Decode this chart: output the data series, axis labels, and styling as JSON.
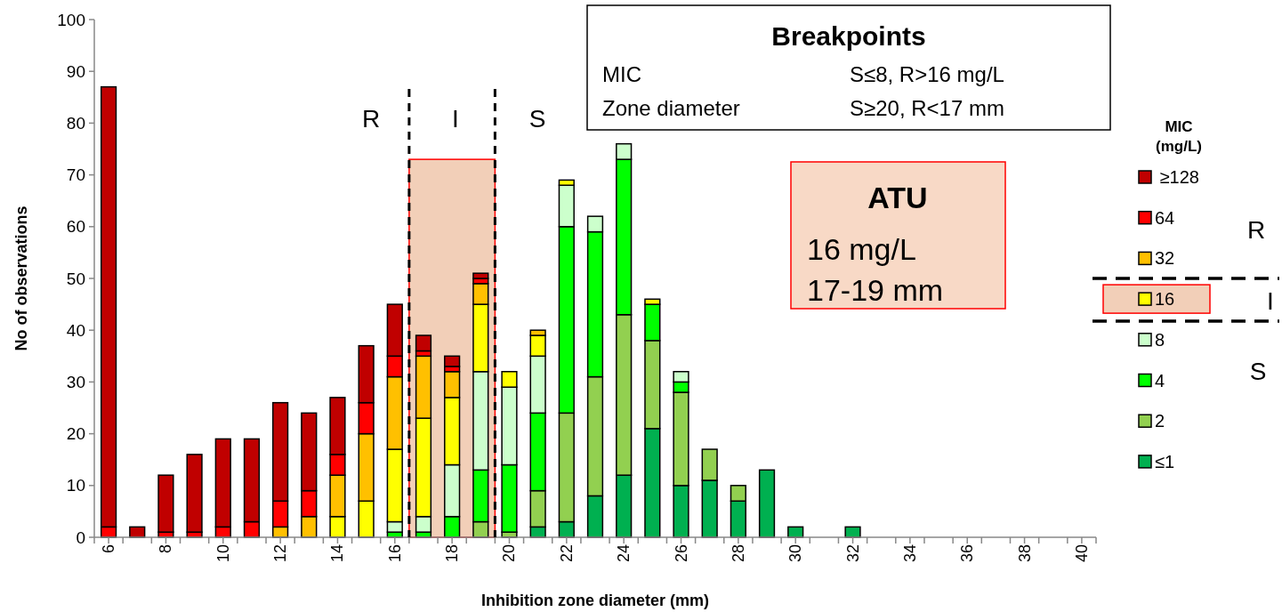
{
  "chart_data": {
    "type": "bar",
    "stacked": true,
    "x": [
      6,
      7,
      8,
      9,
      10,
      11,
      12,
      13,
      14,
      15,
      16,
      17,
      18,
      19,
      20,
      21,
      22,
      23,
      24,
      25,
      26,
      27,
      28,
      29,
      30,
      31,
      32,
      33,
      34,
      35,
      36,
      37,
      38,
      39,
      40
    ],
    "xlim": [
      5.5,
      40.5
    ],
    "xticks": [
      {
        "value": 5.5,
        "label": null
      },
      6,
      {
        "value": 6.5,
        "label": null
      },
      {
        "value": 7.5,
        "label": null
      },
      8,
      {
        "value": 8.5,
        "label": null
      },
      {
        "value": 9.5,
        "label": null
      },
      10,
      {
        "value": 10.5,
        "label": null
      },
      {
        "value": 11.5,
        "label": null
      },
      12,
      {
        "value": 12.5,
        "label": null
      },
      {
        "value": 13.5,
        "label": null
      },
      14,
      {
        "value": 14.5,
        "label": null
      },
      {
        "value": 15.5,
        "label": null
      },
      16,
      {
        "value": 16.5,
        "label": null
      },
      {
        "value": 17.5,
        "label": null
      },
      18,
      {
        "value": 18.5,
        "label": null
      },
      {
        "value": 19.5,
        "label": null
      },
      20,
      {
        "value": 20.5,
        "label": null
      },
      {
        "value": 21.5,
        "label": null
      },
      22,
      {
        "value": 22.5,
        "label": null
      },
      {
        "value": 23.5,
        "label": null
      },
      24,
      {
        "value": 24.5,
        "label": null
      },
      {
        "value": 25.5,
        "label": null
      },
      26,
      {
        "value": 26.5,
        "label": null
      },
      {
        "value": 27.5,
        "label": null
      },
      28,
      {
        "value": 28.5,
        "label": null
      },
      {
        "value": 29.5,
        "label": null
      },
      30,
      {
        "value": 30.5,
        "label": null
      },
      {
        "value": 31.5,
        "label": null
      },
      32,
      {
        "value": 32.5,
        "label": null
      },
      {
        "value": 33.5,
        "label": null
      },
      34,
      {
        "value": 34.5,
        "label": null
      },
      {
        "value": 35.5,
        "label": null
      },
      36,
      {
        "value": 36.5,
        "label": null
      },
      {
        "value": 37.5,
        "label": null
      },
      38,
      {
        "value": 38.5,
        "label": null
      },
      {
        "value": 39.5,
        "label": null
      },
      40,
      {
        "value": 40.5,
        "label": null
      }
    ],
    "ylim": [
      0,
      100
    ],
    "yticks": [
      0,
      10,
      20,
      30,
      40,
      50,
      60,
      70,
      80,
      90,
      100
    ],
    "xlabel": "Inhibition zone diameter (mm)",
    "ylabel": "No of observations",
    "legend": "right",
    "legend_title": "MIC (mg/L)",
    "series": [
      {
        "name": "≤1",
        "color": "#00b050",
        "values": [
          0,
          0,
          0,
          0,
          0,
          0,
          0,
          0,
          0,
          0,
          0,
          0,
          0,
          0,
          0,
          2,
          3,
          8,
          12,
          21,
          10,
          11,
          7,
          13,
          2,
          0,
          2,
          0,
          0,
          0,
          0,
          0,
          0,
          0,
          0
        ]
      },
      {
        "name": "2",
        "color": "#92d050",
        "values": [
          0,
          0,
          0,
          0,
          0,
          0,
          0,
          0,
          0,
          0,
          0,
          0,
          0,
          3,
          1,
          7,
          21,
          23,
          31,
          17,
          18,
          6,
          3,
          0,
          0,
          0,
          0,
          0,
          0,
          0,
          0,
          0,
          0,
          0,
          0
        ]
      },
      {
        "name": "4",
        "color": "#00ff00",
        "values": [
          0,
          0,
          0,
          0,
          0,
          0,
          0,
          0,
          0,
          0,
          1,
          1,
          4,
          10,
          13,
          15,
          36,
          28,
          30,
          7,
          2,
          0,
          0,
          0,
          0,
          0,
          0,
          0,
          0,
          0,
          0,
          0,
          0,
          0,
          0
        ]
      },
      {
        "name": "8",
        "color": "#ccffcc",
        "values": [
          0,
          0,
          0,
          0,
          0,
          0,
          0,
          0,
          0,
          0,
          2,
          3,
          10,
          19,
          15,
          11,
          8,
          3,
          3,
          0,
          2,
          0,
          0,
          0,
          0,
          0,
          0,
          0,
          0,
          0,
          0,
          0,
          0,
          0,
          0
        ]
      },
      {
        "name": "16",
        "color": "#ffff00",
        "values": [
          0,
          0,
          0,
          0,
          0,
          0,
          0,
          0,
          4,
          7,
          14,
          19,
          13,
          13,
          3,
          4,
          1,
          0,
          0,
          1,
          0,
          0,
          0,
          0,
          0,
          0,
          0,
          0,
          0,
          0,
          0,
          0,
          0,
          0,
          0
        ]
      },
      {
        "name": "32",
        "color": "#ffc000",
        "values": [
          0,
          0,
          0,
          0,
          0,
          0,
          2,
          4,
          8,
          13,
          14,
          12,
          5,
          4,
          0,
          1,
          0,
          0,
          0,
          0,
          0,
          0,
          0,
          0,
          0,
          0,
          0,
          0,
          0,
          0,
          0,
          0,
          0,
          0,
          0
        ]
      },
      {
        "name": "64",
        "color": "#ff0000",
        "values": [
          2,
          0,
          1,
          1,
          2,
          3,
          5,
          5,
          4,
          6,
          4,
          1,
          1,
          1,
          0,
          0,
          0,
          0,
          0,
          0,
          0,
          0,
          0,
          0,
          0,
          0,
          0,
          0,
          0,
          0,
          0,
          0,
          0,
          0,
          0
        ]
      },
      {
        "name": " ≥128",
        "color": "#c00000",
        "values": [
          85,
          2,
          11,
          15,
          17,
          16,
          19,
          15,
          11,
          11,
          10,
          3,
          2,
          1,
          0,
          0,
          0,
          0,
          0,
          0,
          0,
          0,
          0,
          0,
          0,
          0,
          0,
          0,
          0,
          0,
          0,
          0,
          0,
          0,
          0
        ]
      }
    ],
    "ref_lines": [
      {
        "axis": "x",
        "value": 16.5,
        "color": "#000000",
        "line_style": "dashed"
      },
      {
        "axis": "x",
        "value": 19.5,
        "color": "#000000",
        "line_style": "dashed"
      }
    ],
    "bands": [
      {
        "axis": "x",
        "from": 16.5,
        "to": 19.5,
        "color": "#f2cfb8"
      }
    ],
    "annotations": [
      "R",
      "I",
      "S",
      "Breakpoints",
      "MIC",
      "S≤8, R>16 mg/L",
      "Zone diameter",
      "S≥20, R<17 mm",
      "ATU",
      "16 mg/L",
      "17-19 mm",
      "R",
      "I",
      "S"
    ]
  }
}
